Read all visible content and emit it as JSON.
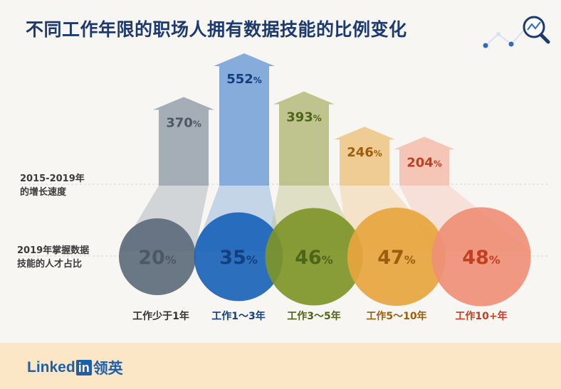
{
  "title": "不同工作年限的职场人拥有数据技能的比例变化",
  "row_labels": {
    "growth": [
      "2015-2019年",
      "的增长速度"
    ],
    "share": [
      "2019年掌握数据",
      "技能的人才占比"
    ]
  },
  "brand": {
    "name": "Linked",
    "box": "in",
    "cn": "领英"
  },
  "icons": [
    "search-chart-icon"
  ],
  "colors": {
    "title": "#1d3a6e",
    "footer": "#fbe7c6",
    "brand": "#1f5fa8"
  },
  "chart_data": {
    "type": "bar",
    "categories": [
      "工作少于1年",
      "工作1～3年",
      "工作3～5年",
      "工作5～10年",
      "工作10+年"
    ],
    "series": [
      {
        "values": [
          370,
          552,
          393,
          246,
          204
        ],
        "labels": [
          "370%",
          "552%",
          "393%",
          "246%",
          "204%"
        ]
      },
      {
        "values": [
          20,
          35,
          46,
          47,
          48
        ],
        "labels": [
          "20%",
          "35%",
          "46%",
          "47%",
          "48%"
        ]
      }
    ],
    "arrow_colors": [
      "#a5adb6",
      "#86acdb",
      "#bfc48e",
      "#f0cc95",
      "#f5c5b6"
    ],
    "circle_colors": [
      "#5d6b7c",
      "#1a63b8",
      "#7e9428",
      "#e7a53e",
      "#ef8f77"
    ],
    "text_colors": [
      "#4d5866",
      "#123f7f",
      "#4e6416",
      "#9b5e0a",
      "#c0401f"
    ]
  }
}
